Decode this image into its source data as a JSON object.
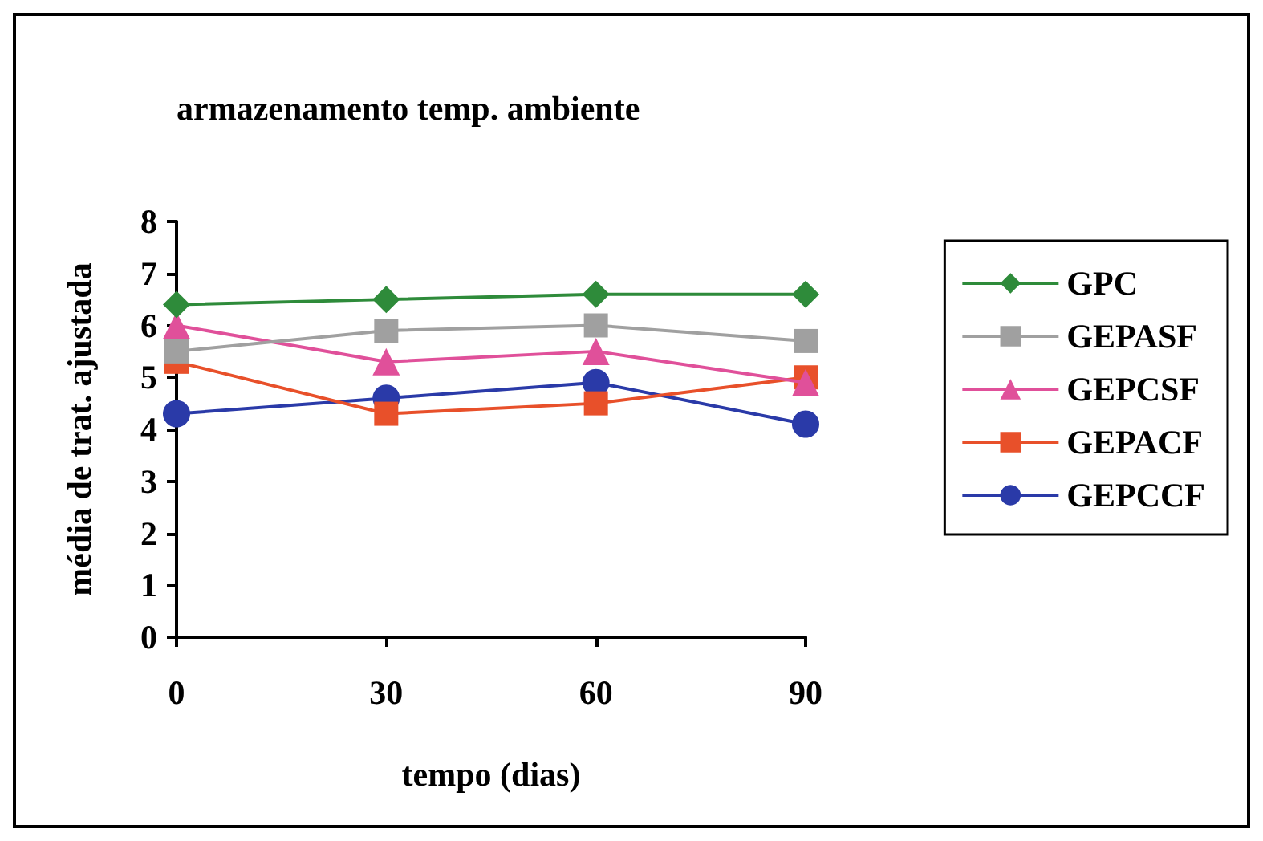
{
  "chart_data": {
    "type": "line",
    "title": "armazenamento temp. ambiente",
    "xlabel": "tempo (dias)",
    "ylabel": "média de trat. ajustada",
    "x": [
      0,
      30,
      60,
      90
    ],
    "xlim": [
      0,
      90
    ],
    "xticks": [
      0,
      30,
      60,
      90
    ],
    "ylim": [
      0,
      8
    ],
    "yticks": [
      0,
      1,
      2,
      3,
      4,
      5,
      6,
      7,
      8
    ],
    "grid": false,
    "legend": "right",
    "series": [
      {
        "name": "GPC",
        "color": "#2e8b3a",
        "marker": "diamond",
        "values": [
          6.4,
          6.5,
          6.6,
          6.6
        ]
      },
      {
        "name": "GEPASF",
        "color": "#a0a0a0",
        "marker": "square",
        "values": [
          5.5,
          5.9,
          6.0,
          5.7
        ]
      },
      {
        "name": "GEPCSF",
        "color": "#e0509a",
        "marker": "triangle",
        "values": [
          6.0,
          5.3,
          5.5,
          4.9
        ]
      },
      {
        "name": "GEPACF",
        "color": "#e8502a",
        "marker": "square",
        "values": [
          5.3,
          4.3,
          4.5,
          5.0
        ]
      },
      {
        "name": "GEPCCF",
        "color": "#2a3aa8",
        "marker": "circle",
        "values": [
          4.3,
          4.6,
          4.9,
          4.1
        ]
      }
    ]
  }
}
